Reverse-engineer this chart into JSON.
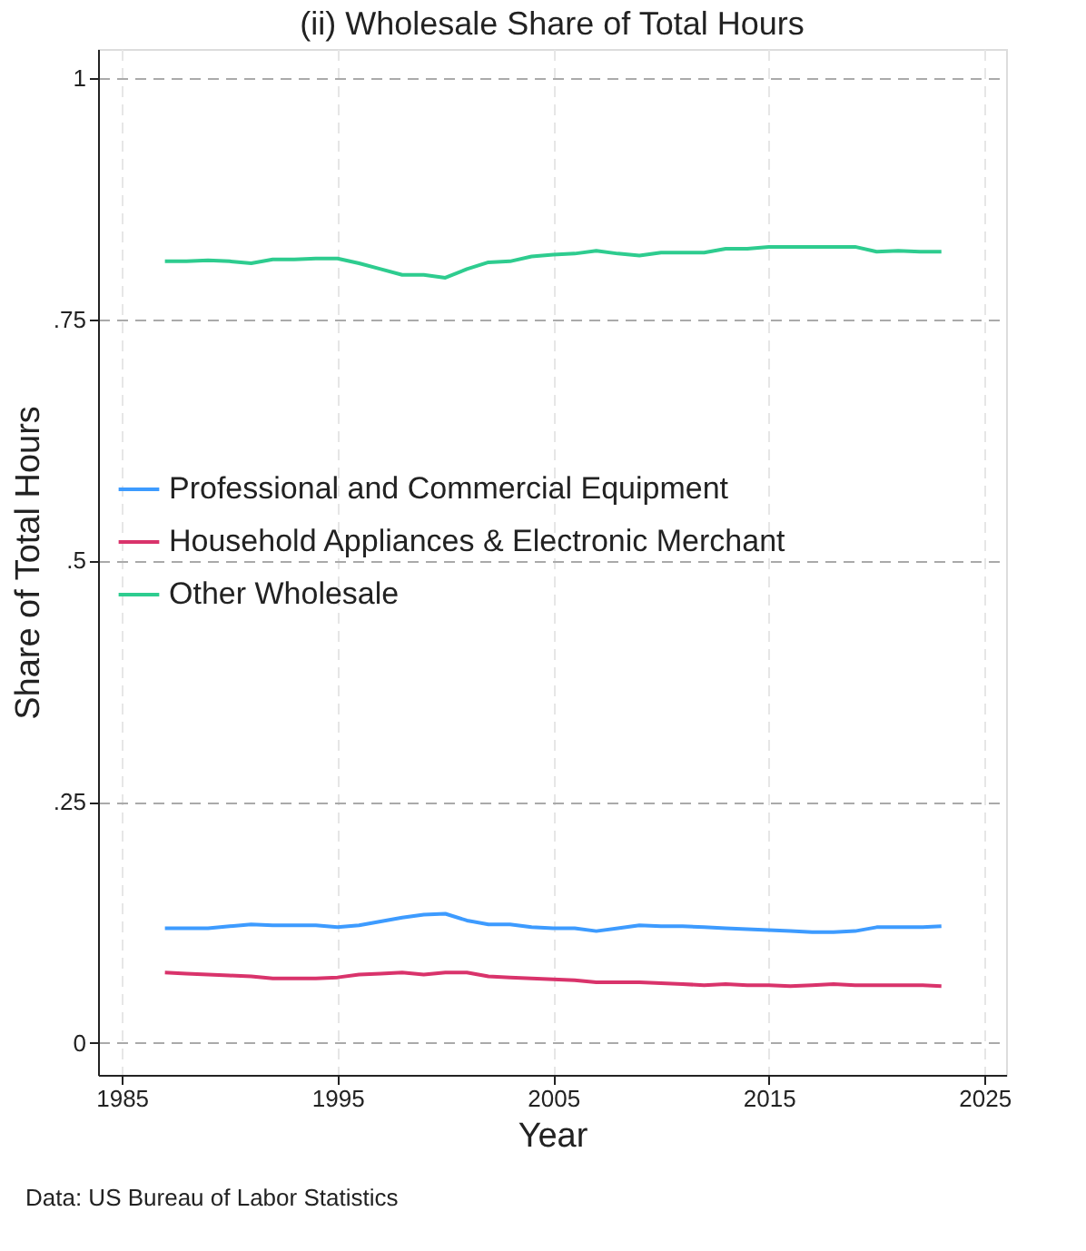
{
  "chart_data": {
    "type": "line",
    "title": "(ii) Wholesale Share of Total Hours",
    "xlabel": "Year",
    "ylabel": "Share of Total Hours",
    "x": [
      1987,
      1988,
      1989,
      1990,
      1991,
      1992,
      1993,
      1994,
      1995,
      1996,
      1997,
      1998,
      1999,
      2000,
      2001,
      2002,
      2003,
      2004,
      2005,
      2006,
      2007,
      2008,
      2009,
      2010,
      2011,
      2012,
      2013,
      2014,
      2015,
      2016,
      2017,
      2018,
      2019,
      2020,
      2021,
      2022,
      2023
    ],
    "series": [
      {
        "name": "Professional and Commercial Equipment",
        "color": "#3d9bff",
        "values": [
          0.119,
          0.119,
          0.119,
          0.121,
          0.123,
          0.122,
          0.122,
          0.122,
          0.12,
          0.122,
          0.126,
          0.13,
          0.133,
          0.134,
          0.127,
          0.123,
          0.123,
          0.12,
          0.119,
          0.119,
          0.116,
          0.119,
          0.122,
          0.121,
          0.121,
          0.12,
          0.119,
          0.118,
          0.117,
          0.116,
          0.115,
          0.115,
          0.116,
          0.12,
          0.12,
          0.12,
          0.121
        ]
      },
      {
        "name": "Household Appliances & Electronic Merchant",
        "color": "#d9336b",
        "values": [
          0.073,
          0.072,
          0.071,
          0.07,
          0.069,
          0.067,
          0.067,
          0.067,
          0.068,
          0.071,
          0.072,
          0.073,
          0.071,
          0.073,
          0.073,
          0.069,
          0.068,
          0.067,
          0.066,
          0.065,
          0.063,
          0.063,
          0.063,
          0.062,
          0.061,
          0.06,
          0.061,
          0.06,
          0.06,
          0.059,
          0.06,
          0.061,
          0.06,
          0.06,
          0.06,
          0.06,
          0.059
        ]
      },
      {
        "name": "Other Wholesale",
        "color": "#2ecc8f",
        "values": [
          0.81,
          0.81,
          0.811,
          0.81,
          0.808,
          0.812,
          0.812,
          0.813,
          0.813,
          0.808,
          0.802,
          0.796,
          0.796,
          0.793,
          0.802,
          0.809,
          0.81,
          0.815,
          0.817,
          0.818,
          0.821,
          0.818,
          0.816,
          0.819,
          0.819,
          0.819,
          0.823,
          0.823,
          0.825,
          0.825,
          0.825,
          0.825,
          0.825,
          0.82,
          0.821,
          0.82,
          0.82
        ]
      }
    ],
    "xlim": [
      1983.9,
      2026
    ],
    "xticks": [
      1985,
      1995,
      2005,
      2015,
      2025
    ],
    "ylim": [
      -0.033,
      1.03
    ],
    "yticks": [
      {
        "value": 0,
        "label": "0"
      },
      {
        "value": 0.25,
        "label": ".25"
      },
      {
        "value": 0.5,
        "label": ".5"
      },
      {
        "value": 0.75,
        "label": ".75"
      },
      {
        "value": 1,
        "label": "1"
      }
    ],
    "grid": true,
    "legend": "left",
    "marker": "none",
    "line_style": "solid",
    "annotations": [
      "Data: US Bureau of Labor Statistics"
    ]
  }
}
